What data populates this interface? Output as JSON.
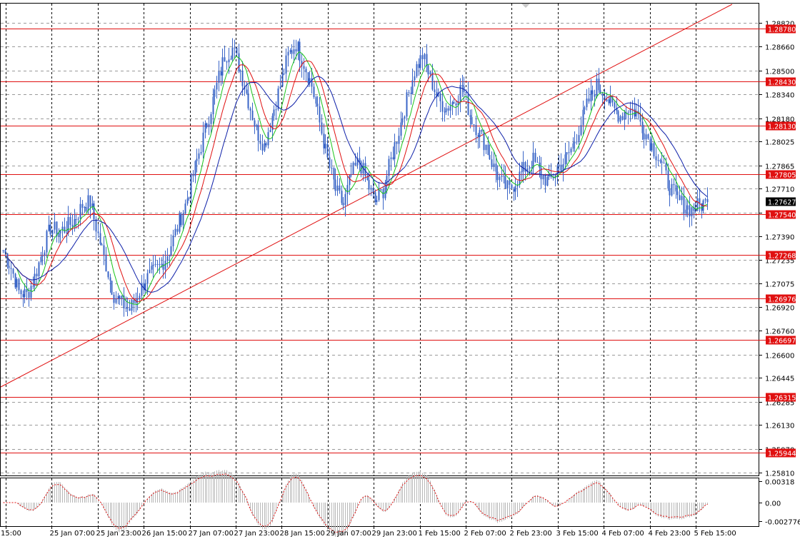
{
  "colors": {
    "candle": "#3a65c7",
    "ma_fast": "#19c419",
    "ma_mid": "#e01010",
    "ma_slow": "#0c1ea8",
    "hline": "#e01010",
    "trendline": "#e01010",
    "tag_bg": "#e01010",
    "tag_text": "#ffffff",
    "current_tag_bg": "#000000",
    "osc_line": "#e01010",
    "osc_hist": "#b8b8b8"
  },
  "price_axis": {
    "ticks": [
      "1.28820",
      "1.28660",
      "1.28500",
      "1.28340",
      "1.28180",
      "1.28025",
      "1.27865",
      "1.27710",
      "1.27550",
      "1.27390",
      "1.27235",
      "1.27075",
      "1.26920",
      "1.26760",
      "1.26600",
      "1.26445",
      "1.26285",
      "1.26130",
      "1.25970",
      "1.25810"
    ],
    "tick_values": [
      1.2882,
      1.2866,
      1.285,
      1.2834,
      1.2818,
      1.28025,
      1.27865,
      1.2771,
      1.2755,
      1.2739,
      1.27235,
      1.27075,
      1.2692,
      1.2676,
      1.266,
      1.26445,
      1.26285,
      1.2613,
      1.2597,
      1.2581
    ]
  },
  "horizontal_levels": [
    {
      "label": "1.28780",
      "value": 1.2878
    },
    {
      "label": "1.28430",
      "value": 1.2843
    },
    {
      "label": "1.28130",
      "value": 1.2813
    },
    {
      "label": "1.27805",
      "value": 1.27805
    },
    {
      "label": "1.27540",
      "value": 1.2754
    },
    {
      "label": "1.27268",
      "value": 1.27268
    },
    {
      "label": "1.26976",
      "value": 1.26976
    },
    {
      "label": "1.26697",
      "value": 1.26697
    },
    {
      "label": "1.26315",
      "value": 1.26315
    },
    {
      "label": "1.25944",
      "value": 1.25944
    }
  ],
  "current_price": {
    "label": "1.27627",
    "value": 1.27627
  },
  "time_axis": {
    "labels": [
      "15:00",
      "25 Jan 07:00",
      "25 Jan 23:00",
      "26 Jan 15:00",
      "27 Jan 07:00",
      "27 Jan 23:00",
      "28 Jan 15:00",
      "29 Jan 07:00",
      "29 Jan 23:00",
      "1 Feb 15:00",
      "2 Feb 07:00",
      "2 Feb 23:00",
      "3 Feb 15:00",
      "4 Feb 07:00",
      "4 Feb 23:00",
      "5 Feb 15:00"
    ]
  },
  "oscillator": {
    "ticks": [
      "0.00318",
      "0.00",
      "-0.002776"
    ],
    "tick_values": [
      0.00318,
      0.0,
      -0.002776
    ]
  },
  "price_series": [
    1.273,
    1.2718,
    1.2702,
    1.27,
    1.2712,
    1.273,
    1.2745,
    1.2742,
    1.2745,
    1.275,
    1.276,
    1.2762,
    1.274,
    1.272,
    1.27,
    1.2694,
    1.269,
    1.27,
    1.271,
    1.2715,
    1.272,
    1.273,
    1.2745,
    1.276,
    1.278,
    1.28,
    1.282,
    1.284,
    1.286,
    1.2865,
    1.285,
    1.283,
    1.281,
    1.28,
    1.282,
    1.284,
    1.286,
    1.2868,
    1.2855,
    1.284,
    1.2815,
    1.279,
    1.277,
    1.276,
    1.278,
    1.279,
    1.2775,
    1.2762,
    1.277,
    1.279,
    1.281,
    1.283,
    1.285,
    1.286,
    1.2845,
    1.283,
    1.2825,
    1.283,
    1.284,
    1.282,
    1.281,
    1.28,
    1.2785,
    1.2775,
    1.277,
    1.2778,
    1.2785,
    1.279,
    1.278,
    1.2775,
    1.2785,
    1.279,
    1.28,
    1.2815,
    1.283,
    1.284,
    1.2835,
    1.2825,
    1.282,
    1.2825,
    1.2822,
    1.281,
    1.28,
    1.279,
    1.2775,
    1.2765,
    1.276,
    1.2757,
    1.276,
    1.2762
  ]
}
